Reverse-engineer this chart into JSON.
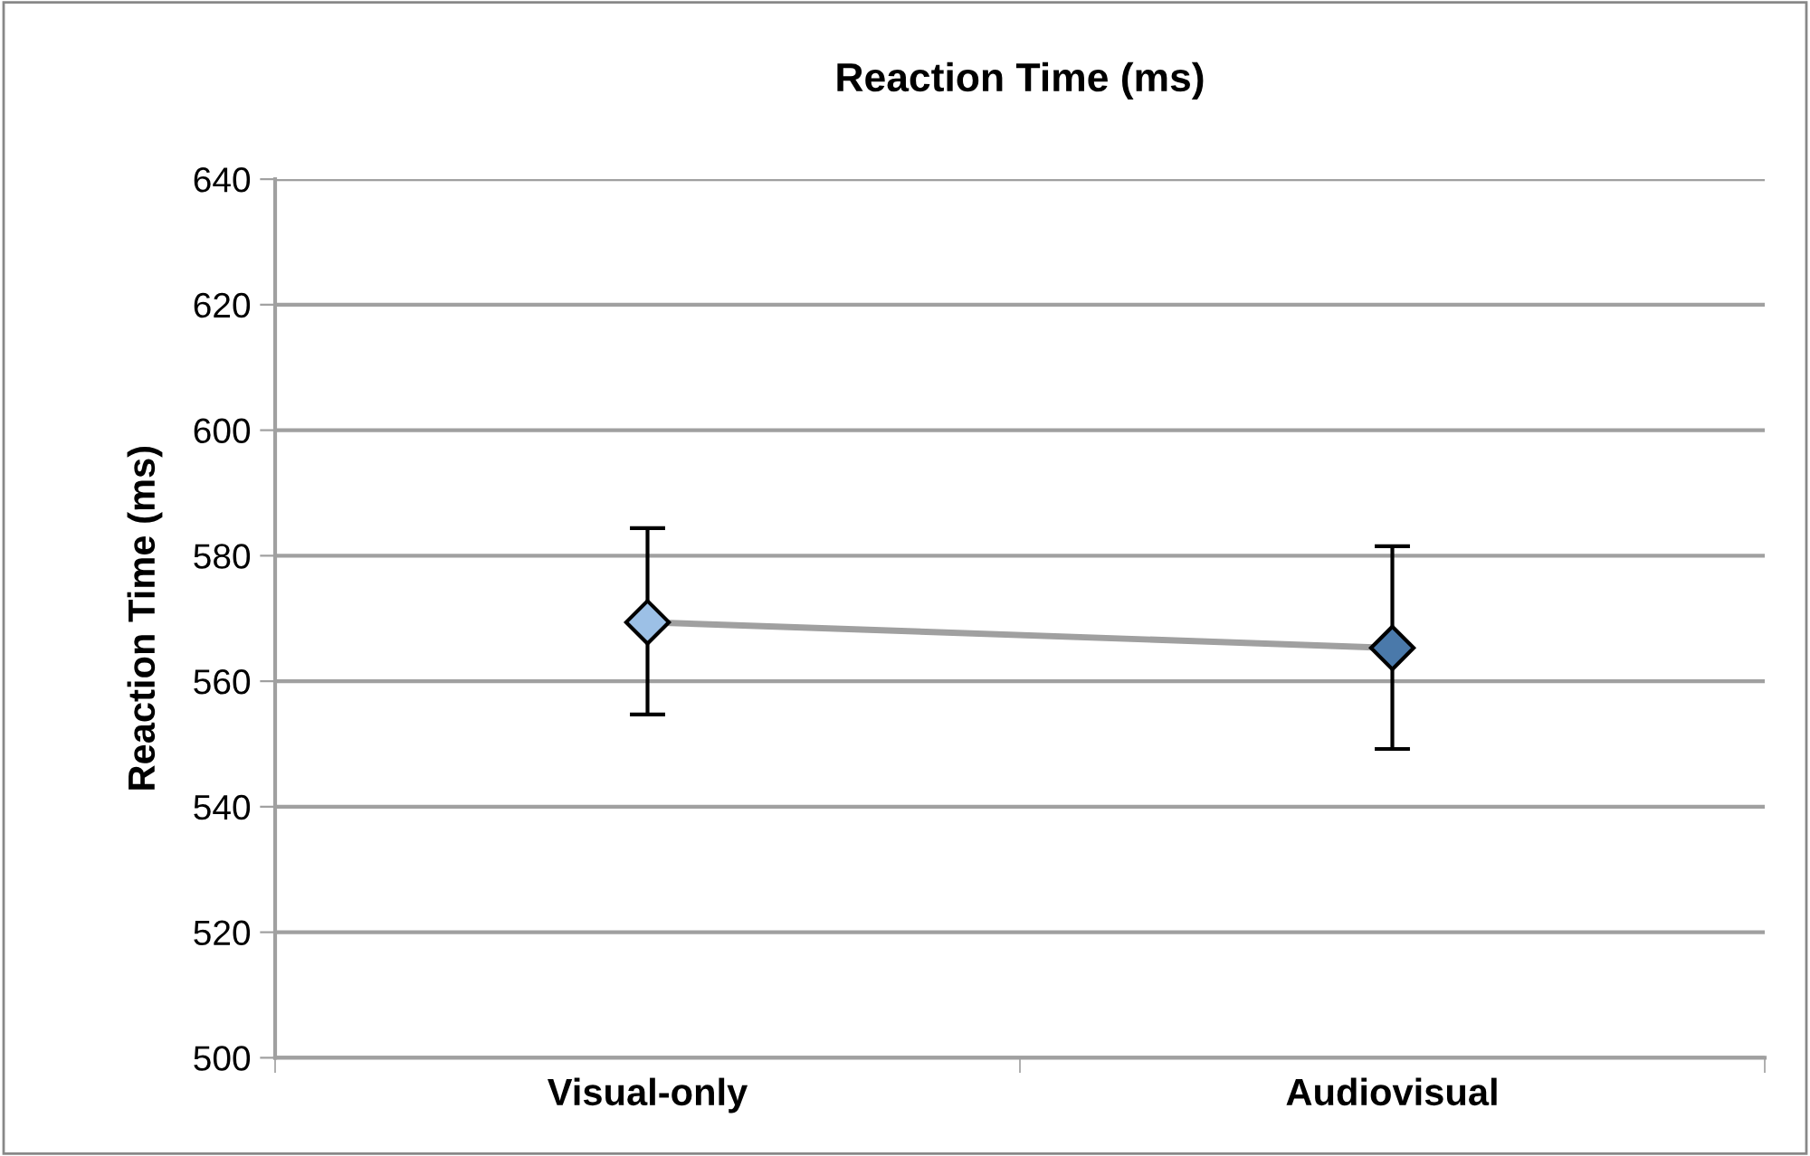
{
  "chart_data": {
    "type": "line",
    "title": "Reaction Time (ms)",
    "ylabel": "Reaction Time (ms)",
    "categories": [
      "Visual-only",
      "Audiovisual"
    ],
    "series": [
      {
        "color": "#a0a0a0",
        "colors": [
          "#9cc0e6",
          "#4a79aa"
        ],
        "values": [
          569.4,
          565.3
        ],
        "errors": [
          [
            554.7,
            584.4
          ],
          [
            549.2,
            581.5
          ]
        ]
      }
    ],
    "ylim": [
      500,
      640
    ],
    "yticks": [
      500,
      520,
      540,
      560,
      580,
      600,
      620,
      640
    ],
    "grid": "y",
    "marker": "diamond",
    "line_style": "solid"
  }
}
